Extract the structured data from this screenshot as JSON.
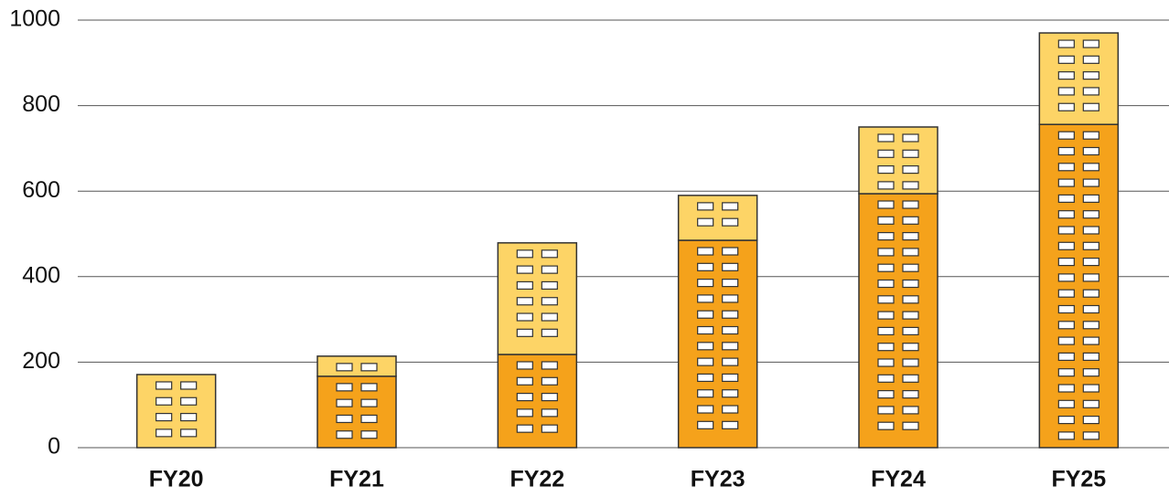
{
  "chart_data": {
    "type": "stacked_bar",
    "categories": [
      "FY20",
      "FY21",
      "FY22",
      "FY23",
      "FY24",
      "FY25"
    ],
    "series": [
      {
        "color": "#f5a21b",
        "values": [
          0,
          167,
          218,
          485,
          594,
          756
        ]
      },
      {
        "color": "#fdd466",
        "values": [
          171,
          47,
          261,
          105,
          156,
          214
        ]
      }
    ],
    "ylim": [
      0,
      1000
    ],
    "yticks": [
      0,
      200,
      400,
      600,
      800,
      1000
    ],
    "grid": true
  }
}
